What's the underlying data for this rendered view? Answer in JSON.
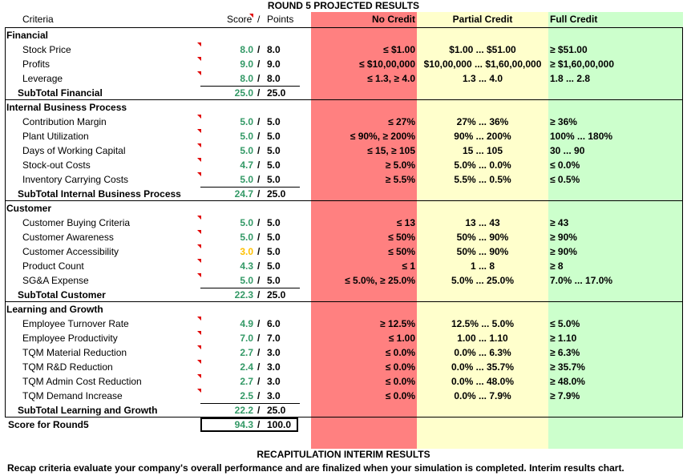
{
  "title": "ROUND 5 PROJECTED RESULTS",
  "headers": {
    "criteria": "Criteria",
    "score": "Score",
    "slash": "/",
    "points": "Points",
    "no_credit": "No Credit",
    "partial_credit": "Partial Credit",
    "full_credit": "Full Credit"
  },
  "colors": {
    "no_credit": "#ff8080",
    "partial_credit": "#ffffcc",
    "full_credit": "#ccffcc",
    "score_green": "#339966",
    "score_yellow": "#ffc000",
    "comment_marker": "#e00000"
  },
  "sections": [
    {
      "name": "Financial",
      "rows": [
        {
          "label": "Stock Price",
          "score": "8.0",
          "points": "8.0",
          "none": "≤ $1.00",
          "partial": "$1.00 ... $51.00",
          "full": "≥ $51.00"
        },
        {
          "label": "Profits",
          "score": "9.0",
          "points": "9.0",
          "none": "≤ $10,00,000",
          "partial": "$10,00,000 ... $1,60,00,000",
          "full": "≥ $1,60,00,000"
        },
        {
          "label": "Leverage",
          "score": "8.0",
          "points": "8.0",
          "none": "≤ 1.3, ≥ 4.0",
          "partial": "1.3 ... 4.0",
          "full": "1.8 ... 2.8"
        }
      ],
      "subtotal": {
        "label": "SubTotal Financial",
        "score": "25.0",
        "points": "25.0"
      }
    },
    {
      "name": "Internal Business Process",
      "rows": [
        {
          "label": "Contribution Margin",
          "score": "5.0",
          "points": "5.0",
          "none": "≤ 27%",
          "partial": "27% ... 36%",
          "full": "≥ 36%"
        },
        {
          "label": "Plant Utilization",
          "score": "5.0",
          "points": "5.0",
          "none": "≤ 90%, ≥ 200%",
          "partial": "90% ... 200%",
          "full": "100% ... 180%"
        },
        {
          "label": "Days of Working Capital",
          "score": "5.0",
          "points": "5.0",
          "none": "≤ 15, ≥ 105",
          "partial": "15 ... 105",
          "full": "30 ... 90"
        },
        {
          "label": "Stock-out Costs",
          "score": "4.7",
          "points": "5.0",
          "none": "≥ 5.0%",
          "partial": "5.0% ... 0.0%",
          "full": "≤ 0.0%"
        },
        {
          "label": "Inventory Carrying Costs",
          "score": "5.0",
          "points": "5.0",
          "none": "≥ 5.5%",
          "partial": "5.5% ... 0.5%",
          "full": "≤ 0.5%"
        }
      ],
      "subtotal": {
        "label": "SubTotal Internal Business Process",
        "score": "24.7",
        "points": "25.0"
      }
    },
    {
      "name": "Customer",
      "rows": [
        {
          "label": "Customer Buying Criteria",
          "score": "5.0",
          "points": "5.0",
          "none": "≤ 13",
          "partial": "13 ... 43",
          "full": "≥ 43"
        },
        {
          "label": "Customer Awareness",
          "score": "5.0",
          "points": "5.0",
          "none": "≤ 50%",
          "partial": "50% ... 90%",
          "full": "≥ 90%"
        },
        {
          "label": "Customer Accessibility",
          "score": "3.0",
          "points": "5.0",
          "none": "≤ 50%",
          "partial": "50% ... 90%",
          "full": "≥ 90%",
          "yellow": true
        },
        {
          "label": "Product Count",
          "score": "4.3",
          "points": "5.0",
          "none": "≤ 1",
          "partial": "1 ... 8",
          "full": "≥ 8"
        },
        {
          "label": "SG&A Expense",
          "score": "5.0",
          "points": "5.0",
          "none": "≤ 5.0%, ≥ 25.0%",
          "partial": "5.0% ... 25.0%",
          "full": "7.0% ... 17.0%"
        }
      ],
      "subtotal": {
        "label": "SubTotal Customer",
        "score": "22.3",
        "points": "25.0"
      }
    },
    {
      "name": "Learning and Growth",
      "rows": [
        {
          "label": "Employee Turnover Rate",
          "score": "4.9",
          "points": "6.0",
          "none": "≥ 12.5%",
          "partial": "12.5% ... 5.0%",
          "full": "≤ 5.0%"
        },
        {
          "label": "Employee Productivity",
          "score": "7.0",
          "points": "7.0",
          "none": "≤ 1.00",
          "partial": "1.00 ... 1.10",
          "full": "≥ 1.10"
        },
        {
          "label": "TQM Material Reduction",
          "score": "2.7",
          "points": "3.0",
          "none": "≤ 0.0%",
          "partial": "0.0% ... 6.3%",
          "full": "≥ 6.3%"
        },
        {
          "label": "TQM R&D Reduction",
          "score": "2.4",
          "points": "3.0",
          "none": "≤ 0.0%",
          "partial": "0.0% ... 35.7%",
          "full": "≥ 35.7%"
        },
        {
          "label": "TQM Admin Cost Reduction",
          "score": "2.7",
          "points": "3.0",
          "none": "≤ 0.0%",
          "partial": "0.0% ... 48.0%",
          "full": "≥ 48.0%"
        },
        {
          "label": "TQM Demand Increase",
          "score": "2.5",
          "points": "3.0",
          "none": "≤ 0.0%",
          "partial": "0.0% ... 7.9%",
          "full": "≥ 7.9%"
        }
      ],
      "subtotal": {
        "label": "SubTotal Learning and Growth",
        "score": "22.2",
        "points": "25.0"
      }
    }
  ],
  "total": {
    "label": "Score for Round5",
    "score": "94.3",
    "points": "100.0"
  },
  "recap": {
    "title": "RECAPITULATION INTERIM RESULTS",
    "text": "Recap criteria evaluate your company's overall performance and are finalized when your simulation is completed.  Interim results chart."
  }
}
